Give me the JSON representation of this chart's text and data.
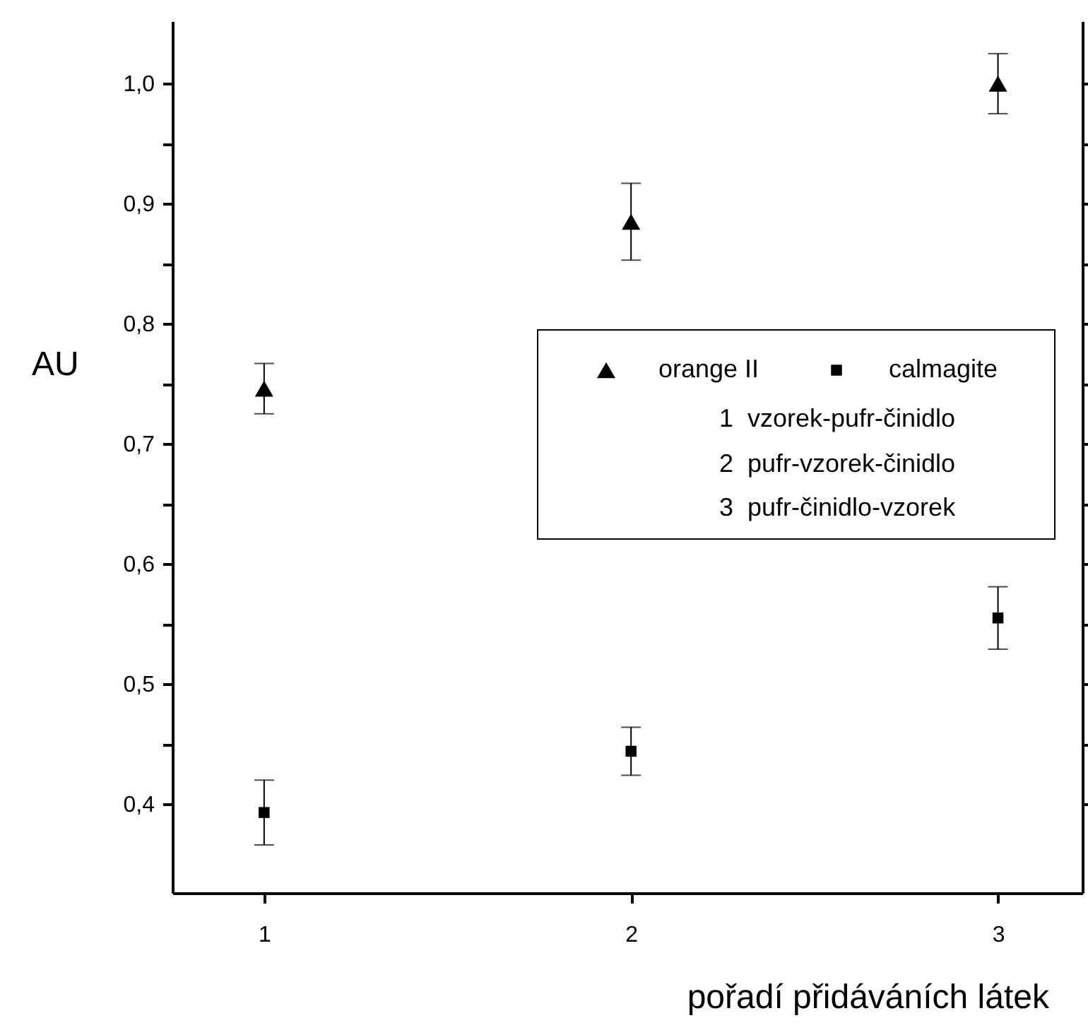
{
  "chart_data": {
    "type": "scatter",
    "xlabel": "pořadí přidáváních látek",
    "ylabel": "AU",
    "x": [
      1,
      2,
      3
    ],
    "series": [
      {
        "name": "orange II",
        "color": "#000000",
        "marker": "triangle",
        "values": [
          0.746,
          0.885,
          1.0
        ],
        "errors": [
          0.021,
          0.032,
          0.025
        ]
      },
      {
        "name": "calmagite",
        "color": "#000000",
        "marker": "square",
        "values": [
          0.393,
          0.444,
          0.555
        ],
        "errors": [
          0.027,
          0.02,
          0.026
        ]
      }
    ],
    "xlim": [
      0.75,
      3.23
    ],
    "xticks": [
      1,
      2,
      3
    ],
    "ylim": [
      0.326,
      1.052
    ],
    "yticks": [
      {
        "value": 0.4,
        "label": "0,4"
      },
      {
        "value": 0.45,
        "label": null
      },
      {
        "value": 0.5,
        "label": "0,5"
      },
      {
        "value": 0.55,
        "label": null
      },
      {
        "value": 0.6,
        "label": "0,6"
      },
      {
        "value": 0.65,
        "label": null
      },
      {
        "value": 0.7,
        "label": "0,7"
      },
      {
        "value": 0.75,
        "label": null
      },
      {
        "value": 0.8,
        "label": "0,8"
      },
      {
        "value": 0.85,
        "label": null
      },
      {
        "value": 0.9,
        "label": "0,9"
      },
      {
        "value": 0.95,
        "label": null
      },
      {
        "value": 1.0,
        "label": "1,0"
      }
    ],
    "legend": "right",
    "annotations": [
      "1  vzorek-pufr-činidlo",
      "2  pufr-vzorek-činidlo",
      "3  pufr-činidlo-vzorek"
    ]
  }
}
